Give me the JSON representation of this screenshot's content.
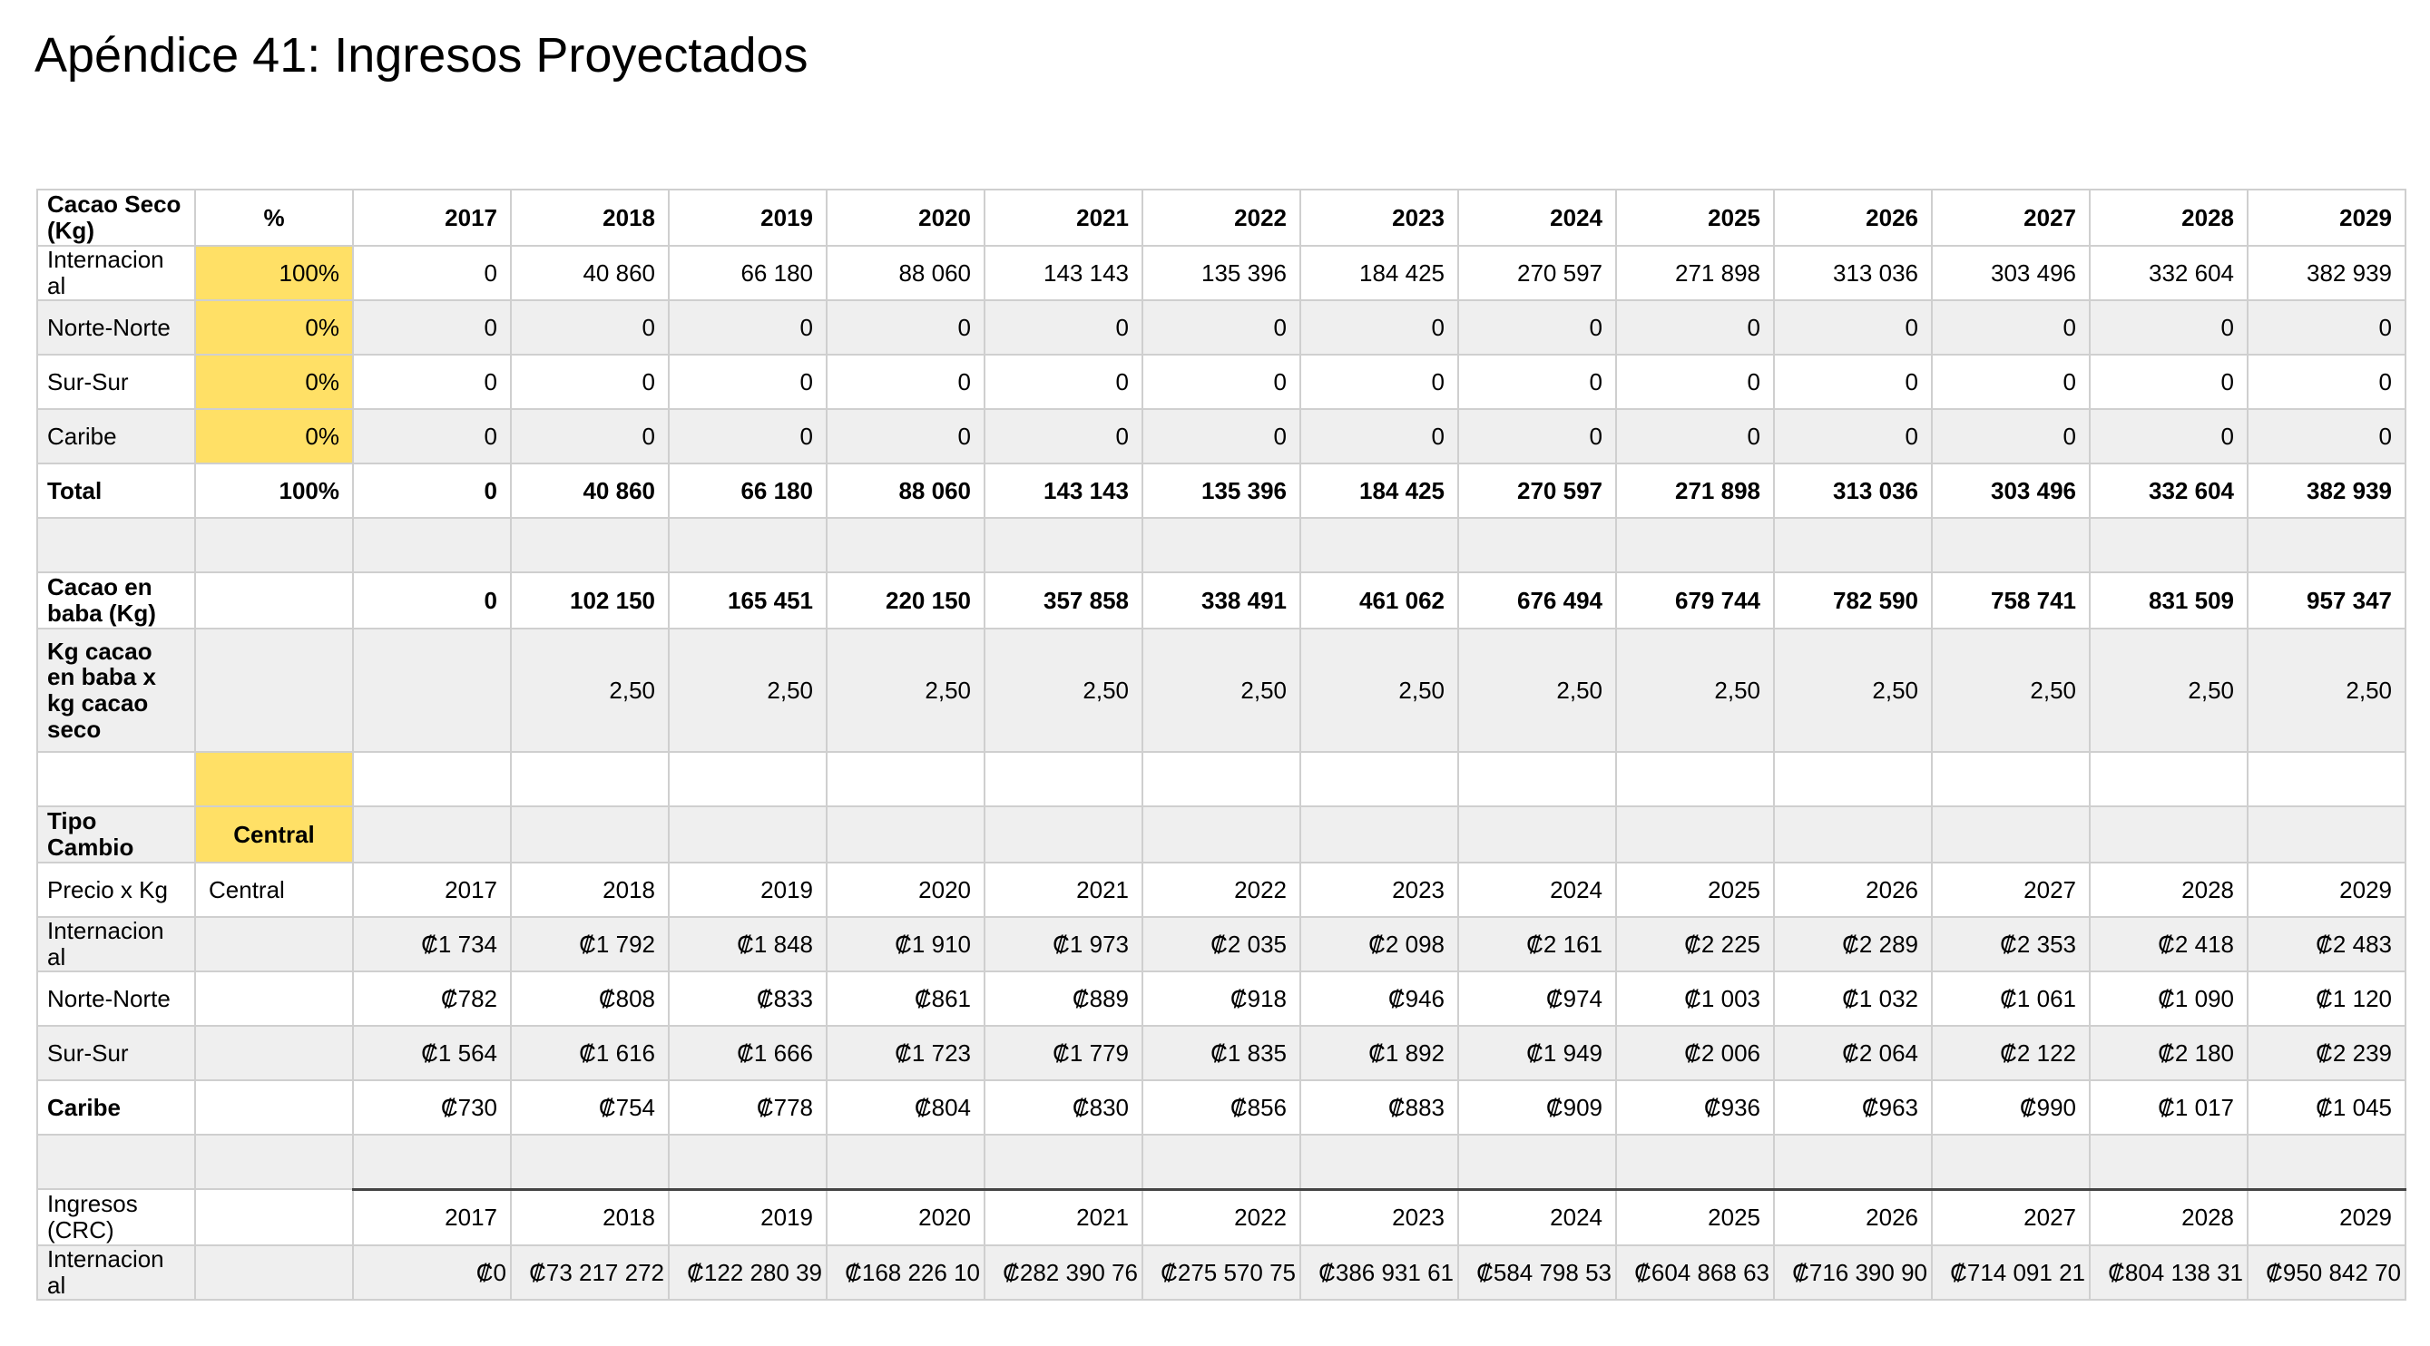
{
  "title": "Apéndice 41:  Ingresos Proyectados",
  "years": [
    "2017",
    "2018",
    "2019",
    "2020",
    "2021",
    "2022",
    "2023",
    "2024",
    "2025",
    "2026",
    "2027",
    "2028",
    "2029"
  ],
  "header": {
    "label": "Cacao Seco (Kg)",
    "pct": "%"
  },
  "volume_rows": [
    {
      "label": "Internacion al",
      "pct": "100%",
      "values": [
        "0",
        "40 860",
        "66 180",
        "88 060",
        "143 143",
        "135 396",
        "184 425",
        "270 597",
        "271 898",
        "313 036",
        "303 496",
        "332 604",
        "382 939"
      ]
    },
    {
      "label": "Norte-Norte",
      "pct": "0%",
      "values": [
        "0",
        "0",
        "0",
        "0",
        "0",
        "0",
        "0",
        "0",
        "0",
        "0",
        "0",
        "0",
        "0"
      ]
    },
    {
      "label": "Sur-Sur",
      "pct": "0%",
      "values": [
        "0",
        "0",
        "0",
        "0",
        "0",
        "0",
        "0",
        "0",
        "0",
        "0",
        "0",
        "0",
        "0"
      ]
    },
    {
      "label": "Caribe",
      "pct": "0%",
      "values": [
        "0",
        "0",
        "0",
        "0",
        "0",
        "0",
        "0",
        "0",
        "0",
        "0",
        "0",
        "0",
        "0"
      ]
    }
  ],
  "total_row": {
    "label": "Total",
    "pct": "100%",
    "values": [
      "0",
      "40 860",
      "66 180",
      "88 060",
      "143 143",
      "135 396",
      "184 425",
      "270 597",
      "271 898",
      "313 036",
      "303 496",
      "332 604",
      "382 939"
    ]
  },
  "baba_row": {
    "label": "Cacao en baba (Kg)",
    "values": [
      "0",
      "102 150",
      "165 451",
      "220 150",
      "357 858",
      "338 491",
      "461 062",
      "676 494",
      "679 744",
      "782 590",
      "758 741",
      "831 509",
      "957 347"
    ]
  },
  "ratio_row": {
    "label": "Kg cacao en baba x kg cacao seco",
    "values": [
      "",
      "2,50",
      "2,50",
      "2,50",
      "2,50",
      "2,50",
      "2,50",
      "2,50",
      "2,50",
      "2,50",
      "2,50",
      "2,50",
      "2,50"
    ]
  },
  "exchange_row": {
    "label": "Tipo Cambio",
    "value": "Central"
  },
  "price_header": {
    "label": "Precio x Kg",
    "col1": "Central"
  },
  "price_rows": [
    {
      "label": "Internacion al",
      "values": [
        "₡1 734",
        "₡1 792",
        "₡1 848",
        "₡1 910",
        "₡1 973",
        "₡2 035",
        "₡2 098",
        "₡2 161",
        "₡2 225",
        "₡2 289",
        "₡2 353",
        "₡2 418",
        "₡2 483"
      ]
    },
    {
      "label": "Norte-Norte",
      "values": [
        "₡782",
        "₡808",
        "₡833",
        "₡861",
        "₡889",
        "₡918",
        "₡946",
        "₡974",
        "₡1 003",
        "₡1 032",
        "₡1 061",
        "₡1 090",
        "₡1 120"
      ]
    },
    {
      "label": "Sur-Sur",
      "values": [
        "₡1 564",
        "₡1 616",
        "₡1 666",
        "₡1 723",
        "₡1 779",
        "₡1 835",
        "₡1 892",
        "₡1 949",
        "₡2 006",
        "₡2 064",
        "₡2 122",
        "₡2 180",
        "₡2 239"
      ]
    },
    {
      "label": "Caribe",
      "values": [
        "₡730",
        "₡754",
        "₡778",
        "₡804",
        "₡830",
        "₡856",
        "₡883",
        "₡909",
        "₡936",
        "₡963",
        "₡990",
        "₡1 017",
        "₡1 045"
      ]
    }
  ],
  "revenue_header": {
    "label": "Ingresos (CRC)"
  },
  "revenue_rows": [
    {
      "label": "Internacion al",
      "values": [
        "₡0",
        "₡73 217 272",
        "₡122 280 39",
        "₡168 226 10",
        "₡282 390 76",
        "₡275 570 75",
        "₡386 931 61",
        "₡584 798 53",
        "₡604 868 63",
        "₡716 390 90",
        "₡714 091 21",
        "₡804 138 31",
        "₡950 842 70"
      ]
    }
  ]
}
